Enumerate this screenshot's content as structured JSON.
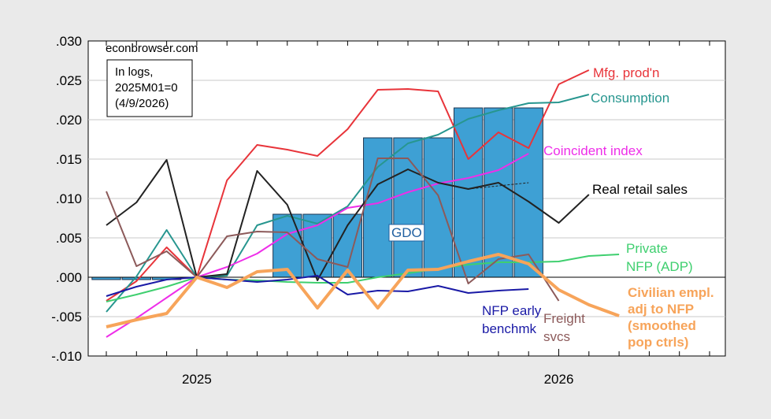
{
  "watermark": "econbrowser.com",
  "note_lines": [
    "In logs,",
    "2025M01=0",
    "(4/9/2026)"
  ],
  "chart_data": {
    "type": "line",
    "x": [
      "2024M10",
      "2024M11",
      "2024M12",
      "2025M01",
      "2025M02",
      "2025M03",
      "2025M04",
      "2025M05",
      "2025M06",
      "2025M07",
      "2025M08",
      "2025M09",
      "2025M10",
      "2025M11",
      "2025M12",
      "2026M01",
      "2026M02",
      "2026M03",
      "2026M04",
      "2026M05",
      "2026M06"
    ],
    "x_tick_labels": [
      "2025",
      "2026"
    ],
    "y_ticks": [
      ".030",
      ".025",
      ".020",
      ".015",
      ".010",
      ".005",
      ".000",
      "-.005",
      "-.010"
    ],
    "ylim": [
      -0.01,
      0.03
    ],
    "grid": true,
    "bars": {
      "label": "GDO",
      "color": "#3ea0d4",
      "items": [
        {
          "start": "2024M10",
          "end": "2024M12",
          "value": -0.0003
        },
        {
          "start": "2025M04",
          "end": "2025M06",
          "value": 0.008
        },
        {
          "start": "2025M07",
          "end": "2025M09",
          "value": 0.0177
        },
        {
          "start": "2025M10",
          "end": "2025M12",
          "value": 0.0215
        }
      ]
    },
    "series": [
      {
        "name": "Mfg. prod'n",
        "label_lines": [
          "Mfg. prod'n"
        ],
        "color": "#e8343a",
        "width": 2,
        "values": [
          -0.003,
          -0.0005,
          0.0038,
          0.0,
          0.0123,
          0.0168,
          0.0162,
          0.0154,
          0.0188,
          0.0238,
          0.0239,
          0.0236,
          0.015,
          0.0184,
          0.0164,
          0.0245,
          0.0263,
          null,
          null,
          null,
          null
        ]
      },
      {
        "name": "Consumption",
        "label_lines": [
          "Consumption"
        ],
        "color": "#27968f",
        "width": 2,
        "values": [
          -0.0044,
          0.0001,
          0.006,
          0.0,
          0.0002,
          0.0066,
          0.0078,
          0.0068,
          0.009,
          0.014,
          0.017,
          0.0181,
          0.0201,
          0.0212,
          0.0221,
          0.0222,
          0.0232,
          null,
          null,
          null,
          null
        ]
      },
      {
        "name": "Coincident index",
        "label_lines": [
          "Coincident index"
        ],
        "color": "#ee2ee9",
        "width": 2,
        "values": [
          -0.0076,
          -0.0052,
          -0.0026,
          0.0,
          0.0013,
          0.003,
          0.0055,
          0.0066,
          0.0088,
          0.0094,
          0.0108,
          0.0119,
          0.0126,
          0.0136,
          0.0157,
          null,
          null,
          null,
          null,
          null,
          null
        ]
      },
      {
        "name": "Real retail sales",
        "label_lines": [
          "Real retail sales"
        ],
        "color": "#222222",
        "width": 2,
        "values": [
          0.0066,
          0.0095,
          0.0149,
          0.0,
          0.0004,
          0.0135,
          0.0092,
          -0.0004,
          0.0066,
          0.0118,
          0.0137,
          0.012,
          0.0112,
          0.012,
          0.0096,
          0.0069,
          0.0105,
          null,
          null,
          null,
          null
        ]
      },
      {
        "name": "Private NFP (ADP)",
        "label_lines": [
          "Private",
          "NFP (ADP)"
        ],
        "color": "#3fcf6f",
        "width": 2,
        "values": [
          -0.0031,
          -0.0022,
          -0.0012,
          0.0,
          -0.0003,
          -0.0004,
          -0.0006,
          -0.0007,
          -0.0007,
          0.0,
          0.0005,
          0.0011,
          0.0016,
          0.0019,
          0.0019,
          0.002,
          0.0027,
          0.0029,
          null,
          null,
          null
        ]
      },
      {
        "name": "NFP early benchmk",
        "label_lines": [
          "NFP early",
          "benchmk"
        ],
        "color": "#1a1aa6",
        "width": 2,
        "values": [
          -0.0024,
          -0.0012,
          -0.0003,
          0.0,
          -0.0003,
          -0.0006,
          -0.0003,
          0.0002,
          -0.0022,
          -0.0017,
          -0.0018,
          -0.0011,
          -0.002,
          -0.0017,
          -0.0015,
          null,
          null,
          null,
          null,
          null,
          null
        ]
      },
      {
        "name": "Freight svcs",
        "label_lines": [
          "Freight",
          "svcs"
        ],
        "color": "#8c5a5a",
        "width": 2,
        "values": [
          0.0109,
          0.0014,
          0.0033,
          0.0,
          0.0052,
          0.0058,
          0.0057,
          0.0023,
          0.0013,
          0.0151,
          0.0151,
          0.0104,
          -0.0008,
          0.0023,
          0.0029,
          -0.003,
          null,
          null,
          null,
          null,
          null
        ]
      },
      {
        "name": "Civilian empl. adj to NFP (smoothed pop ctrls)",
        "label_lines": [
          "Civilian empl.",
          "adj to NFP",
          "(smoothed",
          "pop ctrls)"
        ],
        "color": "#f7a45a",
        "width": 4,
        "values": [
          -0.0063,
          -0.0054,
          -0.0046,
          0.0,
          -0.0013,
          0.0007,
          0.001,
          -0.0039,
          0.0009,
          -0.0039,
          0.0009,
          0.001,
          0.002,
          0.0029,
          0.0017,
          -0.0016,
          -0.0035,
          -0.0049,
          null,
          null,
          null
        ]
      }
    ],
    "dashed_segment": {
      "color": "#222222",
      "from": "2025M10",
      "to": "2025M12",
      "values": [
        0.0112,
        0.012
      ]
    }
  }
}
